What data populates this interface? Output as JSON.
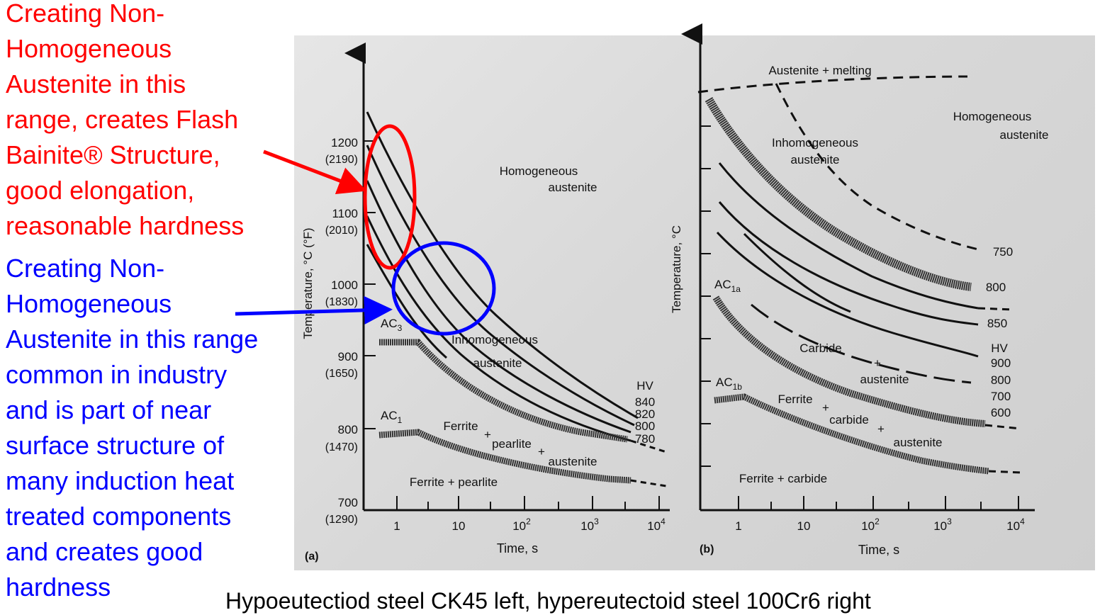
{
  "annotations": {
    "red_note": "Creating Non-\nHomogeneous\nAustenite in this\nrange, creates Flash\nBainite® Structure,\ngood elongation,\nreasonable hardness",
    "blue_note": "Creating Non-\nHomogeneous\nAustenite in this range\ncommon in industry\nand is part of near\nsurface structure of\nmany induction heat\ntreated components\nand creates good\nhardness",
    "red_color": "#ff0000",
    "blue_color": "#0000ff"
  },
  "caption": "Hypoeutectiod steel CK45 left, hypereutectoid steel 100Cr6 right",
  "panel_a": {
    "label": "(a)",
    "ylabel": "Temperature, °C (°F)",
    "xlabel": "Time, s",
    "y_ticks": [
      {
        "c": "1200",
        "f": "(2190)"
      },
      {
        "c": "1100",
        "f": "(2010)"
      },
      {
        "c": "1000",
        "f": "(1830)"
      },
      {
        "c": "900",
        "f": "(1650)"
      },
      {
        "c": "800",
        "f": "(1470)"
      },
      {
        "c": "700",
        "f": "(1290)"
      }
    ],
    "x_ticks": [
      "1",
      "10",
      "10",
      "10",
      "10"
    ],
    "x_exponents": [
      "",
      "",
      "2",
      "3",
      "4"
    ],
    "regions": {
      "homogeneous": [
        "Homogeneous",
        "austenite"
      ],
      "inhomogeneous": [
        "Inhomogeneous",
        "austenite"
      ],
      "ferrite_pearlite_aust": [
        "Ferrite",
        "+",
        "pearlite",
        "+",
        "austenite"
      ],
      "ferrite_pearlite": "Ferrite + pearlite"
    },
    "ac3": "AC",
    "ac3_sub": "3",
    "ac1": "AC",
    "ac1_sub": "1",
    "hv_header": "HV",
    "hv_values": [
      "840",
      "820",
      "800",
      "780"
    ]
  },
  "panel_b": {
    "label": "(b)",
    "ylabel": "Temperature, °C",
    "xlabel": "Time, s",
    "x_ticks": [
      "1",
      "10",
      "10",
      "10",
      "10"
    ],
    "x_exponents": [
      "",
      "",
      "2",
      "3",
      "4"
    ],
    "regions": {
      "melting": "Austenite + melting",
      "homogeneous": [
        "Homogeneous",
        "austenite"
      ],
      "inhomogeneous": [
        "Inhomogeneous",
        "austenite"
      ],
      "carbide_aust": [
        "Carbide",
        "+",
        "austenite"
      ],
      "ferrite_carbide_aust": [
        "Ferrite",
        "+",
        "carbide",
        "+",
        "austenite"
      ],
      "ferrite_carbide": "Ferrite + carbide"
    },
    "ac1a": "AC",
    "ac1a_sub": "1a",
    "ac1b": "AC",
    "ac1b_sub": "1b",
    "upper_values": [
      "750",
      "800",
      "850"
    ],
    "hv_header": "HV",
    "hv_values": [
      "900",
      "800",
      "700",
      "600"
    ]
  }
}
